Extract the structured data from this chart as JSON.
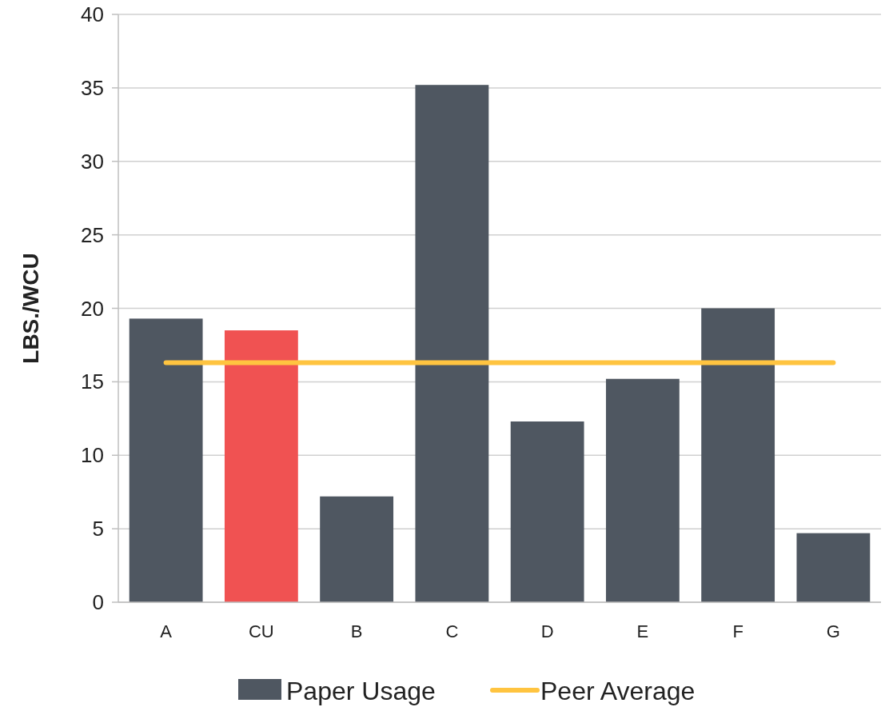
{
  "chart_data": {
    "type": "bar",
    "ylabel": "LBS./WCU",
    "categories": [
      "A",
      "CU",
      "B",
      "C",
      "D",
      "E",
      "F",
      "G"
    ],
    "series": [
      {
        "name": "Paper Usage",
        "color": "#4f5761",
        "colors": [
          "#4f5761",
          "#f05252",
          "#4f5761",
          "#4f5761",
          "#4f5761",
          "#4f5761",
          "#4f5761",
          "#4f5761"
        ],
        "values": [
          19.3,
          18.5,
          7.2,
          35.2,
          12.3,
          15.2,
          20.0,
          4.7
        ]
      },
      {
        "name": "Peer Average",
        "type": "line",
        "color": "#ffc440",
        "values": [
          16.3,
          16.3,
          16.3,
          16.3,
          16.3,
          16.3,
          16.3,
          16.3
        ]
      }
    ],
    "ylim": [
      0,
      40
    ],
    "yticks": [
      0,
      5,
      10,
      15,
      20,
      25,
      30,
      35,
      40
    ],
    "grid": "y",
    "legend": "bottom",
    "marker": "none"
  }
}
